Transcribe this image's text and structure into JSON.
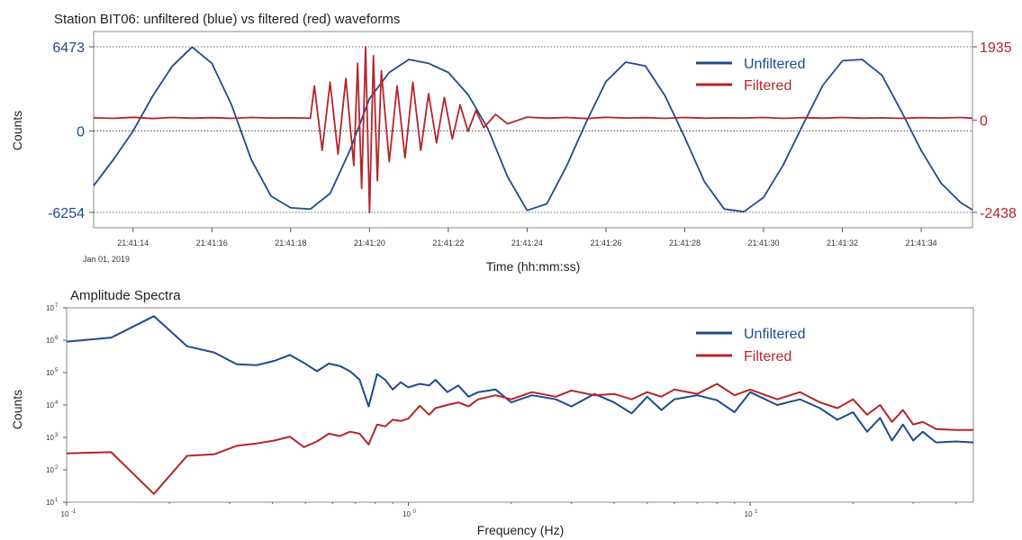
{
  "colors": {
    "unfiltered": "#1f4a8f",
    "filtered": "#b3262b",
    "frame": "#888888",
    "text": "#222222"
  },
  "chart_data": [
    {
      "type": "line",
      "title": "Station BIT06: unfiltered (blue) vs filtered (red) waveforms",
      "xlabel": "Time (hh:mm:ss)",
      "ylabel": "Counts",
      "date_label": "Jan 01, 2019",
      "xlim": [
        "21:41:13.000",
        "21:41:35.300"
      ],
      "x_ticks": [
        "21:41:14",
        "21:41:16",
        "21:41:18",
        "21:41:20",
        "21:41:22",
        "21:41:24",
        "21:41:26",
        "21:41:28",
        "21:41:30",
        "21:41:32",
        "21:41:34"
      ],
      "y_left": {
        "lim": [
          -6254,
          6473
        ],
        "ticks": [
          "6473",
          "0",
          "-6254"
        ],
        "color": "#1f4a8f"
      },
      "y_right": {
        "lim": [
          -2438,
          1935
        ],
        "ticks": [
          "1935",
          "0",
          "-2438"
        ],
        "color": "#b3262b"
      },
      "grid": "dotted lines at tick values",
      "legend": "top-right",
      "series": [
        {
          "name": "Unfiltered",
          "axis": "left",
          "color": "#1f4a8f",
          "x": [
            13.0,
            13.5,
            14.0,
            14.5,
            15.0,
            15.5,
            16.0,
            16.5,
            17.0,
            17.5,
            18.0,
            18.5,
            19.0,
            19.5,
            20.0,
            20.5,
            21.0,
            21.5,
            22.0,
            22.5,
            23.0,
            23.5,
            24.0,
            24.5,
            25.0,
            25.5,
            26.0,
            26.5,
            27.0,
            27.5,
            28.0,
            28.5,
            29.0,
            29.5,
            30.0,
            30.5,
            31.0,
            31.5,
            32.0,
            32.5,
            33.0,
            33.5,
            34.0,
            34.5,
            35.0,
            35.3
          ],
          "y": [
            -4200,
            -2200,
            0,
            2700,
            5000,
            6450,
            5200,
            2000,
            -2200,
            -5000,
            -5900,
            -6000,
            -4800,
            -1500,
            2500,
            4500,
            5500,
            5200,
            4500,
            2800,
            200,
            -3500,
            -6100,
            -5600,
            -2700,
            700,
            3800,
            5300,
            5000,
            2700,
            -500,
            -3900,
            -6000,
            -6200,
            -5100,
            -2600,
            500,
            3500,
            5400,
            5500,
            4300,
            1500,
            -1500,
            -4000,
            -5500,
            -6050
          ]
        },
        {
          "name": "Filtered",
          "axis": "right",
          "color": "#b3262b",
          "x": [
            13.0,
            13.5,
            14.0,
            14.5,
            15.0,
            15.5,
            16.0,
            16.5,
            17.0,
            17.5,
            18.0,
            18.5,
            18.6,
            18.8,
            19.0,
            19.2,
            19.4,
            19.6,
            19.7,
            19.8,
            19.9,
            20.0,
            20.1,
            20.2,
            20.3,
            20.5,
            20.7,
            20.9,
            21.1,
            21.3,
            21.5,
            21.7,
            21.9,
            22.1,
            22.3,
            22.5,
            22.7,
            22.9,
            23.2,
            23.5,
            24.0,
            24.5,
            25.0,
            25.5,
            26.0,
            26.5,
            27.0,
            27.5,
            28.0,
            28.5,
            29.0,
            29.5,
            30.0,
            30.5,
            31.0,
            31.5,
            32.0,
            32.5,
            33.0,
            33.5,
            34.0,
            34.5,
            35.0,
            35.3
          ],
          "y": [
            60,
            45,
            75,
            40,
            70,
            50,
            65,
            45,
            70,
            55,
            60,
            50,
            900,
            -800,
            1000,
            -900,
            1100,
            -1200,
            1500,
            -1800,
            1935,
            -2438,
            1700,
            -1600,
            1300,
            -1100,
            900,
            -1000,
            1000,
            -800,
            700,
            -600,
            600,
            -500,
            400,
            -300,
            250,
            -200,
            150,
            -100,
            80,
            50,
            70,
            40,
            75,
            55,
            65,
            45,
            70,
            50,
            60,
            55,
            70,
            45,
            65,
            50,
            70,
            50,
            60,
            45,
            65,
            55,
            70,
            50
          ]
        }
      ]
    },
    {
      "type": "line",
      "title": "Amplitude Spectra",
      "xlabel": "Frequency (Hz)",
      "ylabel": "Counts",
      "x_scale": "log",
      "y_scale": "log",
      "xlim": [
        0.1,
        45
      ],
      "ylim": [
        10,
        10000000
      ],
      "x_ticks": [
        0.1,
        1,
        10
      ],
      "y_ticks": [
        10,
        100,
        1000,
        10000,
        100000,
        1000000,
        10000000
      ],
      "legend": "top-right",
      "series": [
        {
          "name": "Unfiltered",
          "color": "#1f4a8f",
          "x": [
            0.1,
            0.135,
            0.18,
            0.225,
            0.27,
            0.315,
            0.36,
            0.405,
            0.45,
            0.495,
            0.54,
            0.585,
            0.63,
            0.675,
            0.72,
            0.765,
            0.81,
            0.855,
            0.9,
            0.95,
            1.0,
            1.08,
            1.15,
            1.2,
            1.3,
            1.4,
            1.5,
            1.6,
            1.8,
            2.0,
            2.3,
            2.7,
            3.0,
            3.5,
            4.0,
            4.5,
            5.0,
            5.5,
            6.0,
            7.0,
            8.0,
            9.0,
            10.0,
            12.0,
            14.0,
            16.0,
            18.0,
            20.0,
            22.0,
            24.0,
            26.0,
            28.0,
            30.0,
            32.0,
            35.0,
            40.0,
            45.0
          ],
          "y": [
            900000,
            1200000,
            5500000,
            650000,
            420000,
            180000,
            170000,
            230000,
            350000,
            200000,
            110000,
            190000,
            160000,
            110000,
            60000,
            9000,
            90000,
            60000,
            30000,
            50000,
            35000,
            45000,
            40000,
            60000,
            25000,
            40000,
            18000,
            25000,
            30000,
            12000,
            20000,
            15000,
            9000,
            22000,
            12000,
            5500,
            18000,
            7000,
            15000,
            20000,
            14000,
            6000,
            25000,
            10000,
            15000,
            8000,
            3500,
            6000,
            1500,
            4000,
            800,
            2500,
            800,
            1500,
            700,
            750,
            700
          ]
        },
        {
          "name": "Filtered",
          "color": "#b3262b",
          "x": [
            0.1,
            0.135,
            0.18,
            0.225,
            0.27,
            0.315,
            0.36,
            0.405,
            0.45,
            0.495,
            0.54,
            0.585,
            0.63,
            0.675,
            0.72,
            0.765,
            0.81,
            0.855,
            0.9,
            0.95,
            1.0,
            1.08,
            1.15,
            1.2,
            1.3,
            1.4,
            1.5,
            1.6,
            1.8,
            2.0,
            2.3,
            2.7,
            3.0,
            3.5,
            4.0,
            4.5,
            5.0,
            5.5,
            6.0,
            7.0,
            8.0,
            9.0,
            10.0,
            12.0,
            14.0,
            16.0,
            18.0,
            20.0,
            22.0,
            24.0,
            26.0,
            28.0,
            30.0,
            32.0,
            35.0,
            40.0,
            45.0
          ],
          "y": [
            320,
            350,
            18,
            270,
            300,
            550,
            650,
            800,
            1050,
            500,
            750,
            1300,
            1100,
            1500,
            1300,
            600,
            2500,
            2200,
            3500,
            3200,
            3800,
            9500,
            5000,
            8000,
            10000,
            12000,
            9000,
            15000,
            20000,
            15000,
            25000,
            18000,
            28000,
            20000,
            22000,
            15000,
            25000,
            18000,
            30000,
            22000,
            45000,
            20000,
            30000,
            15000,
            25000,
            12000,
            8000,
            15000,
            5000,
            10000,
            3000,
            7000,
            2500,
            3000,
            1800,
            1700,
            1700
          ]
        }
      ]
    }
  ]
}
